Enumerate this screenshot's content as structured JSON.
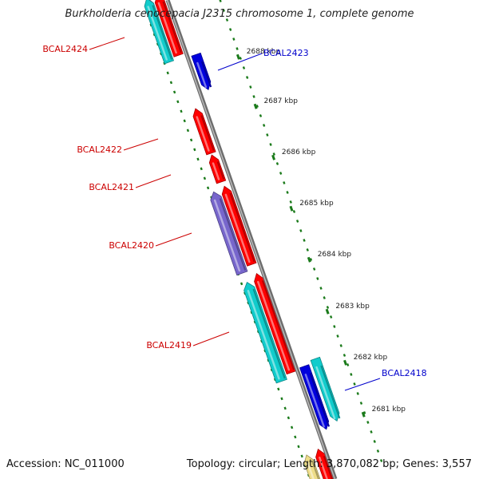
{
  "map": {
    "title": "Burkholderia cenocepacia J2315 chromosome 1, complete genome",
    "accession_label": "Accession: NC_011000",
    "topology_label": "Topology: circular;",
    "length_label": "Length: 3,870,082 bp;",
    "genes_label": "Genes: 3,557"
  },
  "colors": {
    "backbone": "#888888",
    "ticks": "#1a7a1a",
    "label_red": "#cc0000",
    "label_blue": "#0000cc",
    "red_gene": "#ff0000",
    "blue_gene": "#0000dd",
    "cyan_gene": "#11cccc",
    "purple_gene": "#7766cc",
    "magenta_gene": "#ee44aa",
    "yellow_gene": "#eedd88"
  },
  "scale_ticks": [
    {
      "kbp": 2688,
      "label": "2688 kbp"
    },
    {
      "kbp": 2687,
      "label": "2687 kbp"
    },
    {
      "kbp": 2686,
      "label": "2686 kbp"
    },
    {
      "kbp": 2685,
      "label": "2685 kbp"
    },
    {
      "kbp": 2684,
      "label": "2684 kbp"
    },
    {
      "kbp": 2683,
      "label": "2683 kbp"
    },
    {
      "kbp": 2682,
      "label": "2682 kbp"
    },
    {
      "kbp": 2681,
      "label": "2681 kbp"
    }
  ],
  "gene_labels": [
    {
      "name": "BCAL2424",
      "color": "label_red"
    },
    {
      "name": "BCAL2423",
      "color": "label_blue"
    },
    {
      "name": "BCAL2422",
      "color": "label_red"
    },
    {
      "name": "BCAL2421",
      "color": "label_red"
    },
    {
      "name": "BCAL2420",
      "color": "label_red"
    },
    {
      "name": "BCAL2419",
      "color": "label_red"
    },
    {
      "name": "BCAL2418",
      "color": "label_blue"
    }
  ],
  "genes": [
    {
      "color": "magenta_gene",
      "strand": "left"
    },
    {
      "color": "cyan_gene",
      "strand": "left"
    },
    {
      "color": "red_gene",
      "strand": "left"
    },
    {
      "color": "blue_gene",
      "strand": "right"
    },
    {
      "color": "red_gene",
      "strand": "left"
    },
    {
      "color": "red_gene",
      "strand": "left"
    },
    {
      "color": "purple_gene",
      "strand": "left"
    },
    {
      "color": "red_gene",
      "strand": "left"
    },
    {
      "color": "cyan_gene",
      "strand": "left"
    },
    {
      "color": "red_gene",
      "strand": "left"
    },
    {
      "color": "blue_gene",
      "strand": "right"
    },
    {
      "color": "cyan_gene",
      "strand": "right"
    },
    {
      "color": "yellow_gene",
      "strand": "left"
    },
    {
      "color": "red_gene",
      "strand": "left"
    }
  ]
}
